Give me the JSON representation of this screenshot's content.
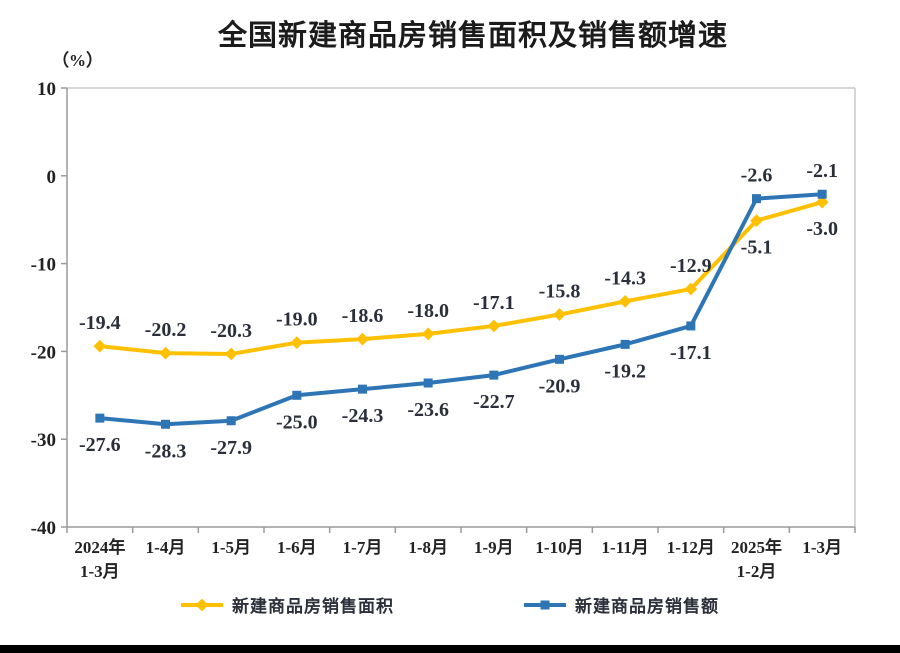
{
  "chart": {
    "title": "全国新建商品房销售面积及销售额增速",
    "unit_label": "（%）"
  },
  "chart_data": {
    "type": "line",
    "title": "全国新建商品房销售面积及销售额增速",
    "ylabel": "（%）",
    "xlabel": "",
    "ylim": [
      -40,
      10
    ],
    "yticks": [
      10,
      0,
      -10,
      -20,
      -30,
      -40
    ],
    "grid": false,
    "legend_position": "bottom",
    "categories": [
      "2024年\n1-3月",
      "1-4月",
      "1-5月",
      "1-6月",
      "1-7月",
      "1-8月",
      "1-9月",
      "1-10月",
      "1-11月",
      "1-12月",
      "2025年\n1-2月",
      "1-3月"
    ],
    "series": [
      {
        "name": "新建商品房销售面积",
        "color": "#FFC000",
        "marker": "diamond",
        "values": [
          -19.4,
          -20.2,
          -20.3,
          -19.0,
          -18.6,
          -18.0,
          -17.1,
          -15.8,
          -14.3,
          -12.9,
          -5.1,
          -3.0
        ],
        "labels": [
          "-19.4",
          "-20.2",
          "-20.3",
          "-19.0",
          "-18.6",
          "-18.0",
          "-17.1",
          "-15.8",
          "-14.3",
          "-12.9",
          "-5.1",
          "-3.0"
        ],
        "label_side": [
          "above",
          "above",
          "above",
          "above",
          "above",
          "above",
          "above",
          "above",
          "above",
          "above",
          "below",
          "below"
        ]
      },
      {
        "name": "新建商品房销售额",
        "color": "#2E75B6",
        "marker": "square",
        "values": [
          -27.6,
          -28.3,
          -27.9,
          -25.0,
          -24.3,
          -23.6,
          -22.7,
          -20.9,
          -19.2,
          -17.1,
          -2.6,
          -2.1
        ],
        "labels": [
          "-27.6",
          "-28.3",
          "-27.9",
          "-25.0",
          "-24.3",
          "-23.6",
          "-22.7",
          "-20.9",
          "-19.2",
          "-17.1",
          "-2.6",
          "-2.1"
        ],
        "label_side": [
          "below",
          "below",
          "below",
          "below",
          "below",
          "below",
          "below",
          "below",
          "below",
          "below",
          "above",
          "above"
        ]
      }
    ],
    "label_color": "#2a2f3a",
    "axis_color": "#9a9a9a",
    "border_color": "#c8c8c8",
    "tick_label_color": "#222222"
  }
}
